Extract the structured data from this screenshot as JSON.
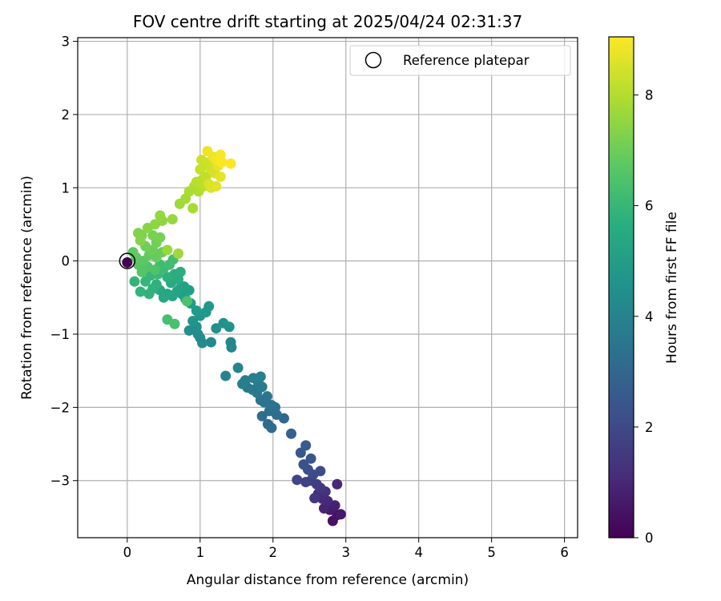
{
  "chart_data": {
    "type": "scatter",
    "title": "FOV centre drift starting at 2025/04/24 02:31:37",
    "xlabel": "Angular distance from reference (arcmin)",
    "ylabel": "Rotation from reference (arcmin)",
    "xlim": [
      -0.68,
      6.18
    ],
    "ylim": [
      -3.78,
      3.05
    ],
    "xticks": [
      0,
      1,
      2,
      3,
      4,
      5,
      6
    ],
    "yticks": [
      -3,
      -2,
      -1,
      0,
      1,
      2,
      3
    ],
    "grid": true,
    "legend": {
      "position": "top-right",
      "entries": [
        "Reference platepar"
      ]
    },
    "reference_point": {
      "x": 0,
      "y": 0,
      "label": "Reference platepar"
    },
    "colorbar": {
      "label": "Hours from first FF file",
      "colormap": "viridis",
      "range": [
        0,
        9.05
      ],
      "ticks": [
        0,
        2,
        4,
        6,
        8
      ]
    },
    "points": [
      {
        "x": 0.0,
        "y": -0.02,
        "h": 0.0
      },
      {
        "x": 2.82,
        "y": -3.55,
        "h": 0.4
      },
      {
        "x": 2.88,
        "y": -3.47,
        "h": 0.5
      },
      {
        "x": 2.93,
        "y": -3.46,
        "h": 0.6
      },
      {
        "x": 2.78,
        "y": -3.4,
        "h": 0.7
      },
      {
        "x": 2.85,
        "y": -3.34,
        "h": 0.8
      },
      {
        "x": 2.7,
        "y": -3.38,
        "h": 0.9
      },
      {
        "x": 2.75,
        "y": -3.28,
        "h": 1.0
      },
      {
        "x": 2.88,
        "y": -3.05,
        "h": 1.05
      },
      {
        "x": 2.68,
        "y": -3.25,
        "h": 1.1
      },
      {
        "x": 2.62,
        "y": -3.18,
        "h": 1.2
      },
      {
        "x": 2.72,
        "y": -3.15,
        "h": 1.3
      },
      {
        "x": 2.57,
        "y": -3.24,
        "h": 1.4
      },
      {
        "x": 2.65,
        "y": -3.1,
        "h": 1.5
      },
      {
        "x": 2.6,
        "y": -3.05,
        "h": 1.6
      },
      {
        "x": 2.52,
        "y": -3.0,
        "h": 1.7
      },
      {
        "x": 2.45,
        "y": -3.02,
        "h": 1.8
      },
      {
        "x": 2.33,
        "y": -2.99,
        "h": 1.9
      },
      {
        "x": 2.55,
        "y": -2.92,
        "h": 2.0
      },
      {
        "x": 2.65,
        "y": -2.87,
        "h": 2.1
      },
      {
        "x": 2.48,
        "y": -2.85,
        "h": 2.2
      },
      {
        "x": 2.42,
        "y": -2.78,
        "h": 2.3
      },
      {
        "x": 2.52,
        "y": -2.7,
        "h": 2.4
      },
      {
        "x": 2.38,
        "y": -2.62,
        "h": 2.5
      },
      {
        "x": 2.45,
        "y": -2.52,
        "h": 2.6
      },
      {
        "x": 2.25,
        "y": -2.36,
        "h": 2.8
      },
      {
        "x": 2.15,
        "y": -2.15,
        "h": 3.0
      },
      {
        "x": 1.98,
        "y": -2.28,
        "h": 3.1
      },
      {
        "x": 1.93,
        "y": -2.23,
        "h": 3.15
      },
      {
        "x": 1.85,
        "y": -2.12,
        "h": 3.2
      },
      {
        "x": 2.05,
        "y": -2.1,
        "h": 3.25
      },
      {
        "x": 1.95,
        "y": -2.05,
        "h": 3.3
      },
      {
        "x": 2.03,
        "y": -2.0,
        "h": 3.35
      },
      {
        "x": 1.98,
        "y": -1.97,
        "h": 3.4
      },
      {
        "x": 1.88,
        "y": -1.93,
        "h": 3.45
      },
      {
        "x": 1.83,
        "y": -1.9,
        "h": 3.5
      },
      {
        "x": 1.92,
        "y": -1.85,
        "h": 3.55
      },
      {
        "x": 1.78,
        "y": -1.8,
        "h": 3.6
      },
      {
        "x": 1.72,
        "y": -1.76,
        "h": 3.65
      },
      {
        "x": 1.65,
        "y": -1.73,
        "h": 3.7
      },
      {
        "x": 1.85,
        "y": -1.72,
        "h": 3.75
      },
      {
        "x": 1.8,
        "y": -1.67,
        "h": 3.8
      },
      {
        "x": 1.58,
        "y": -1.68,
        "h": 3.85
      },
      {
        "x": 1.62,
        "y": -1.63,
        "h": 3.9
      },
      {
        "x": 1.73,
        "y": -1.6,
        "h": 3.95
      },
      {
        "x": 1.83,
        "y": -1.58,
        "h": 4.0
      },
      {
        "x": 1.35,
        "y": -1.57,
        "h": 4.05
      },
      {
        "x": 1.52,
        "y": -1.46,
        "h": 4.1
      },
      {
        "x": 1.43,
        "y": -1.18,
        "h": 4.15
      },
      {
        "x": 1.42,
        "y": -1.11,
        "h": 4.2
      },
      {
        "x": 1.15,
        "y": -1.11,
        "h": 4.25
      },
      {
        "x": 1.03,
        "y": -1.12,
        "h": 4.3
      },
      {
        "x": 1.0,
        "y": -1.05,
        "h": 4.35
      },
      {
        "x": 0.97,
        "y": -1.0,
        "h": 4.4
      },
      {
        "x": 0.85,
        "y": -0.95,
        "h": 4.45
      },
      {
        "x": 0.95,
        "y": -0.9,
        "h": 4.5
      },
      {
        "x": 1.22,
        "y": -0.92,
        "h": 4.55
      },
      {
        "x": 1.4,
        "y": -0.9,
        "h": 4.6
      },
      {
        "x": 1.32,
        "y": -0.85,
        "h": 4.65
      },
      {
        "x": 0.9,
        "y": -0.82,
        "h": 4.7
      },
      {
        "x": 1.0,
        "y": -0.75,
        "h": 4.75
      },
      {
        "x": 1.12,
        "y": -0.62,
        "h": 4.8
      },
      {
        "x": 1.08,
        "y": -0.7,
        "h": 4.85
      },
      {
        "x": 0.95,
        "y": -0.68,
        "h": 4.9
      },
      {
        "x": 0.87,
        "y": -0.58,
        "h": 4.95
      },
      {
        "x": 0.8,
        "y": -0.52,
        "h": 5.0
      },
      {
        "x": 0.75,
        "y": -0.45,
        "h": 5.05
      },
      {
        "x": 0.85,
        "y": -0.4,
        "h": 5.1
      },
      {
        "x": 0.78,
        "y": -0.35,
        "h": 5.15
      },
      {
        "x": 0.72,
        "y": -0.38,
        "h": 5.2
      },
      {
        "x": 0.68,
        "y": -0.42,
        "h": 5.25
      },
      {
        "x": 0.62,
        "y": -0.48,
        "h": 5.3
      },
      {
        "x": 0.55,
        "y": -0.45,
        "h": 5.35
      },
      {
        "x": 0.5,
        "y": -0.5,
        "h": 5.4
      },
      {
        "x": 0.45,
        "y": -0.4,
        "h": 5.45
      },
      {
        "x": 0.6,
        "y": -0.3,
        "h": 5.5
      },
      {
        "x": 0.7,
        "y": -0.25,
        "h": 5.55
      },
      {
        "x": 0.65,
        "y": -0.18,
        "h": 5.6
      },
      {
        "x": 0.73,
        "y": -0.15,
        "h": 5.65
      },
      {
        "x": 0.55,
        "y": -0.22,
        "h": 5.7
      },
      {
        "x": 0.4,
        "y": -0.32,
        "h": 5.75
      },
      {
        "x": 0.35,
        "y": -0.38,
        "h": 5.8
      },
      {
        "x": 0.3,
        "y": -0.45,
        "h": 5.85
      },
      {
        "x": 0.18,
        "y": -0.42,
        "h": 5.9
      },
      {
        "x": 0.1,
        "y": -0.28,
        "h": 5.95
      },
      {
        "x": 0.25,
        "y": -0.28,
        "h": 6.0
      },
      {
        "x": 0.32,
        "y": -0.2,
        "h": 6.05
      },
      {
        "x": 0.42,
        "y": -0.18,
        "h": 6.1
      },
      {
        "x": 0.5,
        "y": -0.1,
        "h": 6.15
      },
      {
        "x": 0.45,
        "y": -0.05,
        "h": 6.2
      },
      {
        "x": 0.58,
        "y": -0.05,
        "h": 6.25
      },
      {
        "x": 0.63,
        "y": 0.02,
        "h": 6.3
      },
      {
        "x": 0.55,
        "y": -0.8,
        "h": 6.35
      },
      {
        "x": 0.65,
        "y": -0.86,
        "h": 6.4
      },
      {
        "x": 0.82,
        "y": -0.55,
        "h": 6.45
      },
      {
        "x": 0.38,
        "y": -0.12,
        "h": 6.5
      },
      {
        "x": 0.28,
        "y": -0.08,
        "h": 6.55
      },
      {
        "x": 0.2,
        "y": -0.15,
        "h": 6.6
      },
      {
        "x": 0.15,
        "y": -0.05,
        "h": 6.65
      },
      {
        "x": 0.22,
        "y": 0.0,
        "h": 6.7
      },
      {
        "x": 0.12,
        "y": 0.05,
        "h": 6.75
      },
      {
        "x": 0.08,
        "y": 0.12,
        "h": 6.8
      },
      {
        "x": 0.3,
        "y": 0.08,
        "h": 6.85
      },
      {
        "x": 0.4,
        "y": 0.05,
        "h": 6.9
      },
      {
        "x": 0.48,
        "y": 0.12,
        "h": 6.95
      },
      {
        "x": 0.35,
        "y": 0.15,
        "h": 7.0
      },
      {
        "x": 0.25,
        "y": 0.2,
        "h": 7.05
      },
      {
        "x": 0.4,
        "y": 0.25,
        "h": 7.1
      },
      {
        "x": 0.45,
        "y": 0.32,
        "h": 7.15
      },
      {
        "x": 0.35,
        "y": 0.35,
        "h": 7.2
      },
      {
        "x": 0.2,
        "y": 0.35,
        "h": 7.25
      },
      {
        "x": 0.15,
        "y": 0.38,
        "h": 7.3
      },
      {
        "x": 0.18,
        "y": 0.28,
        "h": 7.35
      },
      {
        "x": 0.28,
        "y": 0.45,
        "h": 7.4
      },
      {
        "x": 0.38,
        "y": 0.5,
        "h": 7.45
      },
      {
        "x": 0.48,
        "y": 0.55,
        "h": 7.5
      },
      {
        "x": 0.45,
        "y": 0.62,
        "h": 7.55
      },
      {
        "x": 0.62,
        "y": 0.57,
        "h": 7.6
      },
      {
        "x": 0.55,
        "y": 0.15,
        "h": 7.65
      },
      {
        "x": 0.7,
        "y": 0.1,
        "h": 7.7
      },
      {
        "x": 0.72,
        "y": 0.78,
        "h": 7.75
      },
      {
        "x": 0.8,
        "y": 0.85,
        "h": 7.8
      },
      {
        "x": 0.9,
        "y": 0.72,
        "h": 7.85
      },
      {
        "x": 0.85,
        "y": 0.95,
        "h": 7.9
      },
      {
        "x": 0.92,
        "y": 1.02,
        "h": 7.95
      },
      {
        "x": 0.98,
        "y": 0.95,
        "h": 8.0
      },
      {
        "x": 1.02,
        "y": 1.1,
        "h": 8.05
      },
      {
        "x": 0.95,
        "y": 1.08,
        "h": 8.1
      },
      {
        "x": 1.05,
        "y": 1.02,
        "h": 8.15
      },
      {
        "x": 1.08,
        "y": 1.15,
        "h": 8.2
      },
      {
        "x": 1.0,
        "y": 1.25,
        "h": 8.25
      },
      {
        "x": 1.05,
        "y": 1.3,
        "h": 8.3
      },
      {
        "x": 1.02,
        "y": 1.38,
        "h": 8.35
      },
      {
        "x": 1.12,
        "y": 1.35,
        "h": 8.4
      },
      {
        "x": 1.15,
        "y": 1.25,
        "h": 8.45
      },
      {
        "x": 1.2,
        "y": 1.2,
        "h": 8.5
      },
      {
        "x": 1.12,
        "y": 1.05,
        "h": 8.55
      },
      {
        "x": 1.15,
        "y": 1.0,
        "h": 8.6
      },
      {
        "x": 1.22,
        "y": 1.02,
        "h": 8.65
      },
      {
        "x": 1.28,
        "y": 1.15,
        "h": 8.7
      },
      {
        "x": 1.25,
        "y": 1.3,
        "h": 8.75
      },
      {
        "x": 1.18,
        "y": 1.42,
        "h": 8.8
      },
      {
        "x": 1.1,
        "y": 1.5,
        "h": 8.85
      },
      {
        "x": 1.22,
        "y": 1.38,
        "h": 8.9
      },
      {
        "x": 1.28,
        "y": 1.45,
        "h": 8.95
      },
      {
        "x": 1.3,
        "y": 1.35,
        "h": 9.0
      },
      {
        "x": 1.42,
        "y": 1.33,
        "h": 9.05
      }
    ]
  }
}
